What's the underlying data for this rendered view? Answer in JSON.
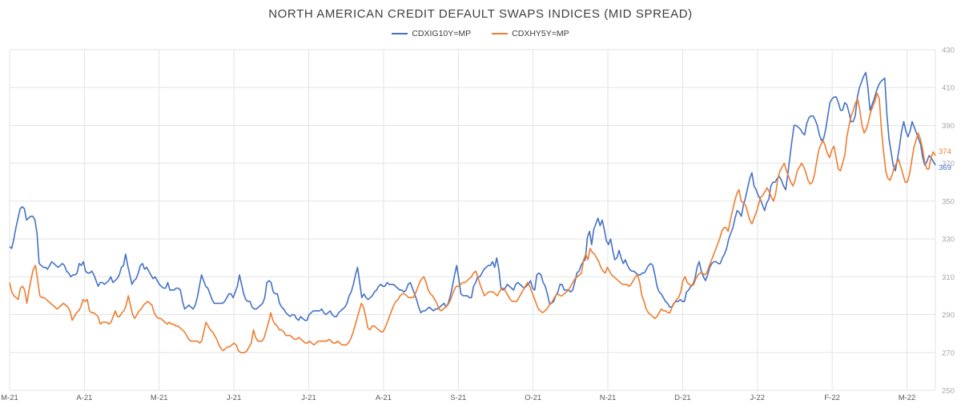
{
  "chart_data": {
    "type": "line",
    "title": "NORTH AMERICAN CREDIT DEFAULT SWAPS INDICES (MID SPREAD)",
    "x_tick_labels": [
      "M-21",
      "A-21",
      "M-21",
      "J-21",
      "J-21",
      "A-21",
      "S-21",
      "O-21",
      "N-21",
      "D-21",
      "J-22",
      "F-22",
      "M-22"
    ],
    "y_ticks": [
      250,
      270,
      290,
      310,
      330,
      350,
      370,
      390,
      410,
      430
    ],
    "ylim": [
      250,
      430
    ],
    "grid": true,
    "legend_position": "top-center",
    "series": [
      {
        "name": "CDXIG10Y=MP",
        "color": "#4472C4",
        "last_value_label": "369",
        "values": [
          326,
          325,
          330,
          336,
          341,
          346,
          347,
          346,
          340,
          341,
          342,
          342,
          340,
          333,
          317,
          316,
          315,
          315,
          314,
          316,
          318,
          317,
          316,
          315,
          316,
          317,
          316,
          313,
          312,
          310,
          311,
          311,
          312,
          317,
          316,
          318,
          313,
          312,
          312,
          313,
          311,
          308,
          305,
          307,
          307,
          306,
          307,
          308,
          310,
          307,
          308,
          309,
          311,
          315,
          316,
          322,
          316,
          311,
          306,
          308,
          309,
          312,
          316,
          317,
          314,
          315,
          313,
          311,
          309,
          310,
          308,
          306,
          305,
          304,
          304,
          307,
          303,
          303,
          303,
          304,
          304,
          303,
          297,
          293,
          294,
          295,
          294,
          293,
          295,
          299,
          305,
          311,
          308,
          305,
          304,
          301,
          298,
          296,
          296,
          296,
          296,
          296,
          297,
          299,
          301,
          301,
          299,
          302,
          305,
          311,
          306,
          301,
          298,
          297,
          297,
          294,
          293,
          293,
          294,
          295,
          296,
          299,
          307,
          308,
          307,
          302,
          301,
          301,
          296,
          294,
          293,
          291,
          290,
          289,
          290,
          290,
          288,
          287,
          289,
          288,
          287,
          287,
          290,
          291,
          292,
          292,
          292,
          292,
          293,
          291,
          290,
          291,
          292,
          290,
          289,
          289,
          291,
          292,
          293,
          294,
          296,
          300,
          302,
          306,
          311,
          315,
          307,
          299,
          301,
          299,
          298,
          299,
          300,
          302,
          303,
          305,
          306,
          305,
          305,
          307,
          306,
          306,
          306,
          305,
          304,
          303,
          303,
          302,
          303,
          306,
          307,
          304,
          301,
          298,
          294,
          291,
          292,
          292,
          293,
          294,
          293,
          292,
          293,
          293,
          294,
          295,
          296,
          294,
          296,
          300,
          305,
          311,
          316,
          309,
          301,
          300,
          300,
          300,
          299,
          299,
          305,
          307,
          310,
          310,
          312,
          314,
          315,
          316,
          316,
          318,
          315,
          320,
          314,
          304,
          303,
          304,
          306,
          305,
          304,
          303,
          306,
          307,
          306,
          305,
          304,
          305,
          306,
          308,
          304,
          303,
          311,
          312,
          311,
          307,
          305,
          301,
          296,
          296,
          297,
          300,
          302,
          306,
          306,
          303,
          303,
          303,
          302,
          303,
          307,
          312,
          313,
          316,
          318,
          319,
          331,
          334,
          327,
          335,
          338,
          341,
          337,
          340,
          335,
          329,
          327,
          330,
          324,
          319,
          320,
          324,
          320,
          317,
          319,
          316,
          314,
          313,
          313,
          312,
          311,
          311,
          312,
          312,
          314,
          316,
          317,
          316,
          311,
          305,
          302,
          301,
          299,
          297,
          296,
          294,
          294,
          296,
          297,
          297,
          298,
          297,
          297,
          302,
          303,
          305,
          306,
          309,
          315,
          318,
          313,
          310,
          308,
          311,
          315,
          317,
          318,
          318,
          317,
          317,
          320,
          322,
          325,
          330,
          333,
          336,
          341,
          345,
          344,
          342,
          348,
          352,
          357,
          362,
          365,
          358,
          356,
          353,
          351,
          348,
          345,
          349,
          351,
          358,
          360,
          360,
          362,
          363,
          361,
          358,
          356,
          364,
          373,
          382,
          390,
          390,
          389,
          388,
          386,
          385,
          391,
          394,
          395,
          395,
          393,
          390,
          385,
          382,
          383,
          388,
          395,
          402,
          404,
          405,
          405,
          402,
          398,
          398,
          402,
          401,
          397,
          392,
          392,
          395,
          405,
          410,
          413,
          416,
          418,
          410,
          398,
          401,
          404,
          408,
          411,
          413,
          414,
          415,
          396,
          383,
          376,
          369,
          366,
          372,
          379,
          387,
          392,
          387,
          384,
          387,
          392,
          389,
          386,
          383,
          380,
          373,
          369,
          371,
          374,
          373,
          371,
          369
        ]
      },
      {
        "name": "CDXHY5Y=MP",
        "color": "#ED7D31",
        "last_value_label": "374",
        "values": [
          307,
          302,
          300,
          299,
          298,
          304,
          305,
          303,
          296,
          303,
          309,
          314,
          316,
          308,
          300,
          299,
          299,
          298,
          297,
          296,
          295,
          294,
          293,
          294,
          295,
          296,
          295,
          294,
          292,
          287,
          289,
          291,
          292,
          294,
          298,
          297,
          298,
          292,
          291,
          291,
          290,
          289,
          285,
          286,
          286,
          286,
          285,
          286,
          289,
          292,
          289,
          289,
          291,
          292,
          295,
          300,
          295,
          290,
          288,
          290,
          292,
          293,
          295,
          296,
          297,
          296,
          295,
          291,
          289,
          288,
          288,
          287,
          286,
          285,
          286,
          285,
          285,
          284,
          284,
          283,
          282,
          281,
          279,
          277,
          276,
          276,
          276,
          276,
          275,
          276,
          281,
          286,
          284,
          282,
          281,
          279,
          277,
          274,
          272,
          271,
          272,
          273,
          273,
          274,
          275,
          274,
          271,
          270,
          270,
          270,
          271,
          273,
          275,
          282,
          278,
          276,
          276,
          276,
          278,
          282,
          286,
          291,
          287,
          285,
          284,
          282,
          282,
          281,
          279,
          279,
          279,
          278,
          277,
          277,
          278,
          277,
          276,
          275,
          275,
          276,
          275,
          274,
          275,
          276,
          276,
          276,
          276,
          276,
          277,
          276,
          275,
          275,
          276,
          275,
          274,
          274,
          274,
          275,
          277,
          280,
          284,
          288,
          292,
          296,
          294,
          289,
          283,
          282,
          284,
          284,
          283,
          282,
          281,
          281,
          283,
          286,
          289,
          292,
          295,
          297,
          298,
          300,
          301,
          301,
          300,
          299,
          299,
          299,
          301,
          304,
          307,
          309,
          310,
          307,
          303,
          301,
          300,
          298,
          296,
          293,
          292,
          293,
          294,
          295,
          297,
          300,
          303,
          305,
          305,
          306,
          307,
          307,
          308,
          309,
          310,
          312,
          313,
          310,
          306,
          303,
          300,
          301,
          302,
          302,
          302,
          301,
          300,
          302,
          304,
          304,
          302,
          300,
          298,
          297,
          297,
          297,
          299,
          301,
          303,
          305,
          307,
          305,
          302,
          299,
          296,
          293,
          292,
          291,
          292,
          293,
          295,
          296,
          298,
          300,
          301,
          300,
          300,
          301,
          302,
          303,
          305,
          307,
          309,
          310,
          311,
          312,
          319,
          322,
          319,
          325,
          323,
          322,
          320,
          318,
          315,
          313,
          312,
          315,
          313,
          311,
          310,
          309,
          308,
          307,
          306,
          306,
          306,
          305,
          306,
          308,
          310,
          311,
          307,
          300,
          297,
          293,
          291,
          290,
          289,
          288,
          289,
          291,
          293,
          292,
          292,
          291,
          291,
          294,
          296,
          298,
          299,
          302,
          308,
          310,
          307,
          306,
          305,
          306,
          309,
          311,
          312,
          312,
          311,
          312,
          315,
          318,
          321,
          324,
          327,
          330,
          334,
          336,
          336,
          334,
          340,
          345,
          350,
          354,
          356,
          350,
          349,
          348,
          344,
          340,
          338,
          341,
          344,
          348,
          352,
          353,
          355,
          357,
          355,
          352,
          350,
          354,
          362,
          366,
          368,
          370,
          366,
          363,
          360,
          358,
          361,
          366,
          368,
          370,
          368,
          365,
          361,
          359,
          360,
          364,
          371,
          377,
          380,
          382,
          379,
          375,
          373,
          377,
          379,
          373,
          367,
          366,
          370,
          374,
          384,
          390,
          395,
          398,
          402,
          404,
          398,
          390,
          386,
          388,
          392,
          397,
          400,
          403,
          407,
          404,
          388,
          376,
          366,
          362,
          361,
          364,
          368,
          370,
          372,
          368,
          364,
          360,
          360,
          364,
          371,
          378,
          382,
          386,
          383,
          378,
          371,
          367,
          367,
          373,
          376,
          374
        ]
      }
    ]
  }
}
